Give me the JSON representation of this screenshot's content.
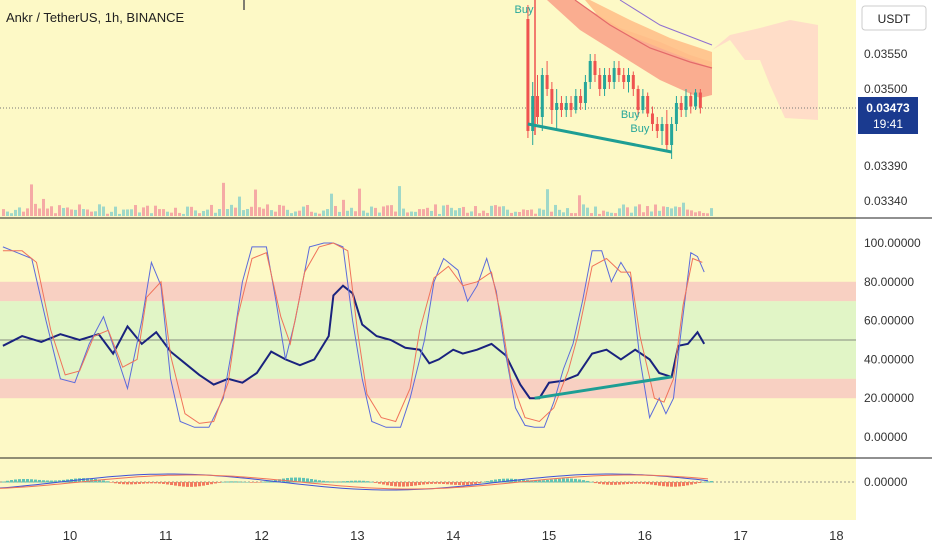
{
  "header": {
    "title": "Ankr / TetherUS, 1h, BINANCE"
  },
  "currency_button": {
    "label": "USDT"
  },
  "price_badge": {
    "price": "0.03473",
    "countdown": "19:41"
  },
  "price_ticks": [
    "0.03550",
    "0.03500",
    "0.03390",
    "0.03340"
  ],
  "osc_ticks": [
    "100.00000",
    "80.00000",
    "60.00000",
    "40.00000",
    "20.00000",
    "0.00000"
  ],
  "macd_ticks": [
    "0.00000"
  ],
  "x_ticks": [
    "10",
    "11",
    "12",
    "13",
    "14",
    "15",
    "16",
    "17",
    "18"
  ],
  "buy_labels": [
    "Buy",
    "Buy",
    "Buy"
  ],
  "colors": {
    "background": "#fdf9c6",
    "bullish": "#26a69a",
    "bearish": "#ef5350",
    "rsi": "#1a237e",
    "stoch_k": "#5b6bdb",
    "stoch_d": "#f0735a",
    "trendline": "#1e9e94",
    "badge": "#1a3a8f",
    "buy_text": "#26a69a"
  },
  "chart_data": [
    {
      "type": "candlestick",
      "title": "Ankr / TetherUS, 1h, BINANCE",
      "y_ticks": [
        0.0355,
        0.035,
        0.0339,
        0.0334
      ],
      "last_price": 0.03473,
      "candles_day15_to_16_6": [
        [
          14.78,
          0.036,
          0.0362,
          0.0343,
          0.0344
        ],
        [
          14.83,
          0.0344,
          0.0351,
          0.0342,
          0.0349
        ],
        [
          14.88,
          0.0349,
          0.0352,
          0.0345,
          0.0346
        ],
        [
          14.93,
          0.0346,
          0.0353,
          0.0344,
          0.0352
        ],
        [
          14.98,
          0.0352,
          0.0354,
          0.0349,
          0.035
        ],
        [
          15.03,
          0.035,
          0.0351,
          0.0345,
          0.0347
        ],
        [
          15.08,
          0.0347,
          0.035,
          0.0344,
          0.0348
        ],
        [
          15.13,
          0.0348,
          0.0349,
          0.0346,
          0.0347
        ],
        [
          15.18,
          0.0347,
          0.0349,
          0.0346,
          0.0348
        ],
        [
          15.23,
          0.0348,
          0.0349,
          0.0346,
          0.0347
        ],
        [
          15.28,
          0.0347,
          0.035,
          0.03465,
          0.0349
        ],
        [
          15.33,
          0.0349,
          0.035,
          0.0347,
          0.0348
        ],
        [
          15.38,
          0.0348,
          0.0352,
          0.0347,
          0.0351
        ],
        [
          15.43,
          0.0351,
          0.0355,
          0.035,
          0.0354
        ],
        [
          15.48,
          0.0354,
          0.0355,
          0.0351,
          0.0352
        ],
        [
          15.53,
          0.0352,
          0.0353,
          0.0349,
          0.035
        ],
        [
          15.58,
          0.035,
          0.0353,
          0.0349,
          0.0352
        ],
        [
          15.63,
          0.0352,
          0.0353,
          0.035,
          0.0351
        ],
        [
          15.68,
          0.0351,
          0.0354,
          0.035,
          0.0353
        ],
        [
          15.73,
          0.0353,
          0.0354,
          0.0351,
          0.0352
        ],
        [
          15.78,
          0.0352,
          0.0353,
          0.035,
          0.0351
        ],
        [
          15.83,
          0.0351,
          0.0353,
          0.03495,
          0.0352
        ],
        [
          15.88,
          0.0352,
          0.03525,
          0.0349,
          0.035
        ],
        [
          15.93,
          0.035,
          0.03505,
          0.0346,
          0.0347
        ],
        [
          15.98,
          0.0347,
          0.035,
          0.03465,
          0.0349
        ],
        [
          16.03,
          0.0349,
          0.03495,
          0.0346,
          0.03465
        ],
        [
          16.08,
          0.03465,
          0.03475,
          0.0344,
          0.0345
        ],
        [
          16.13,
          0.0345,
          0.0346,
          0.0343,
          0.0344
        ],
        [
          16.18,
          0.0344,
          0.0346,
          0.0342,
          0.0345
        ],
        [
          16.23,
          0.0345,
          0.0347,
          0.0341,
          0.0342
        ],
        [
          16.28,
          0.0342,
          0.0346,
          0.034,
          0.0345
        ],
        [
          16.33,
          0.0345,
          0.0349,
          0.0344,
          0.0348
        ],
        [
          16.38,
          0.0348,
          0.0349,
          0.0346,
          0.0347
        ],
        [
          16.43,
          0.0347,
          0.035,
          0.0346,
          0.0349
        ],
        [
          16.48,
          0.0349,
          0.03495,
          0.03465,
          0.03475
        ],
        [
          16.53,
          0.03475,
          0.035,
          0.0347,
          0.03495
        ],
        [
          16.58,
          0.03495,
          0.035,
          0.03465,
          0.03473
        ]
      ],
      "trendline": [
        [
          14.78,
          0.0345
        ],
        [
          16.28,
          0.0341
        ]
      ],
      "buy_signals": [
        [
          14.64,
          0.0362
        ],
        [
          15.75,
          0.0347
        ],
        [
          15.85,
          0.0345
        ]
      ]
    },
    {
      "type": "line",
      "ylim": [
        0,
        100
      ],
      "y_ticks": [
        100,
        80,
        60,
        40,
        20,
        0
      ],
      "bands": [
        [
          70,
          80
        ],
        [
          30,
          70
        ],
        [
          20,
          30
        ]
      ],
      "series": [
        {
          "values": [
            [
              9.3,
              47
            ],
            [
              9.5,
              52
            ],
            [
              9.7,
              49
            ],
            [
              9.9,
              53
            ],
            [
              10.1,
              50
            ],
            [
              10.3,
              53
            ],
            [
              10.45,
              43
            ],
            [
              10.6,
              57
            ],
            [
              10.75,
              48
            ],
            [
              10.9,
              54
            ],
            [
              11.05,
              44
            ],
            [
              11.2,
              38
            ],
            [
              11.35,
              32
            ],
            [
              11.5,
              27
            ],
            [
              11.65,
              30
            ],
            [
              11.8,
              28
            ],
            [
              11.95,
              33
            ],
            [
              12.1,
              44
            ],
            [
              12.25,
              40
            ],
            [
              12.4,
              37
            ],
            [
              12.55,
              40
            ],
            [
              12.7,
              52
            ],
            [
              12.75,
              73
            ],
            [
              12.85,
              78
            ],
            [
              12.95,
              74
            ],
            [
              13.05,
              58
            ],
            [
              13.2,
              52
            ],
            [
              13.35,
              50
            ],
            [
              13.5,
              46
            ],
            [
              13.65,
              45
            ],
            [
              13.75,
              38
            ],
            [
              13.85,
              40
            ],
            [
              14.0,
              45
            ],
            [
              14.1,
              43
            ],
            [
              14.25,
              45
            ],
            [
              14.4,
              48
            ],
            [
              14.55,
              42
            ],
            [
              14.7,
              27
            ],
            [
              14.8,
              20
            ],
            [
              14.9,
              20
            ],
            [
              15.0,
              28
            ],
            [
              15.15,
              29
            ],
            [
              15.3,
              32
            ],
            [
              15.45,
              43
            ],
            [
              15.6,
              45
            ],
            [
              15.75,
              40
            ],
            [
              15.9,
              45
            ],
            [
              16.05,
              40
            ],
            [
              16.15,
              33
            ],
            [
              16.28,
              31
            ],
            [
              16.35,
              47
            ],
            [
              16.45,
              48
            ],
            [
              16.55,
              54
            ],
            [
              16.62,
              48
            ]
          ]
        },
        {
          "values": [
            [
              9.3,
              98
            ],
            [
              9.45,
              95
            ],
            [
              9.6,
              92
            ],
            [
              9.75,
              60
            ],
            [
              9.9,
              30
            ],
            [
              10.05,
              28
            ],
            [
              10.2,
              48
            ],
            [
              10.35,
              62
            ],
            [
              10.5,
              40
            ],
            [
              10.6,
              25
            ],
            [
              10.75,
              60
            ],
            [
              10.85,
              90
            ],
            [
              10.95,
              78
            ],
            [
              11.05,
              30
            ],
            [
              11.15,
              8
            ],
            [
              11.3,
              5
            ],
            [
              11.45,
              5
            ],
            [
              11.6,
              20
            ],
            [
              11.7,
              48
            ],
            [
              11.8,
              80
            ],
            [
              11.9,
              98
            ],
            [
              12.05,
              98
            ],
            [
              12.15,
              70
            ],
            [
              12.25,
              40
            ],
            [
              12.35,
              60
            ],
            [
              12.5,
              98
            ],
            [
              12.65,
              100
            ],
            [
              12.75,
              100
            ],
            [
              12.85,
              98
            ],
            [
              12.95,
              60
            ],
            [
              13.05,
              30
            ],
            [
              13.15,
              8
            ],
            [
              13.3,
              5
            ],
            [
              13.45,
              5
            ],
            [
              13.55,
              20
            ],
            [
              13.7,
              50
            ],
            [
              13.8,
              80
            ],
            [
              13.9,
              92
            ],
            [
              14.05,
              86
            ],
            [
              14.15,
              70
            ],
            [
              14.25,
              78
            ],
            [
              14.35,
              92
            ],
            [
              14.45,
              75
            ],
            [
              14.55,
              42
            ],
            [
              14.65,
              15
            ],
            [
              14.75,
              6
            ],
            [
              14.85,
              5
            ],
            [
              14.95,
              5
            ],
            [
              15.05,
              18
            ],
            [
              15.15,
              35
            ],
            [
              15.25,
              48
            ],
            [
              15.35,
              70
            ],
            [
              15.45,
              96
            ],
            [
              15.55,
              96
            ],
            [
              15.65,
              80
            ],
            [
              15.75,
              90
            ],
            [
              15.85,
              82
            ],
            [
              15.95,
              40
            ],
            [
              16.05,
              10
            ],
            [
              16.15,
              20
            ],
            [
              16.22,
              12
            ],
            [
              16.3,
              20
            ],
            [
              16.38,
              55
            ],
            [
              16.48,
              95
            ],
            [
              16.55,
              93
            ],
            [
              16.62,
              85
            ]
          ],
          "name": ""
        },
        {
          "values": [
            [
              9.3,
              96
            ],
            [
              9.5,
              96
            ],
            [
              9.65,
              90
            ],
            [
              9.8,
              55
            ],
            [
              9.95,
              32
            ],
            [
              10.1,
              34
            ],
            [
              10.25,
              52
            ],
            [
              10.4,
              55
            ],
            [
              10.55,
              36
            ],
            [
              10.7,
              40
            ],
            [
              10.8,
              72
            ],
            [
              10.95,
              80
            ],
            [
              11.05,
              42
            ],
            [
              11.2,
              12
            ],
            [
              11.35,
              7
            ],
            [
              11.5,
              8
            ],
            [
              11.65,
              28
            ],
            [
              11.75,
              62
            ],
            [
              11.9,
              92
            ],
            [
              12.05,
              95
            ],
            [
              12.2,
              62
            ],
            [
              12.3,
              48
            ],
            [
              12.45,
              85
            ],
            [
              12.6,
              98
            ],
            [
              12.75,
              100
            ],
            [
              12.9,
              96
            ],
            [
              13.0,
              55
            ],
            [
              13.1,
              22
            ],
            [
              13.25,
              10
            ],
            [
              13.4,
              8
            ],
            [
              13.55,
              25
            ],
            [
              13.65,
              55
            ],
            [
              13.8,
              82
            ],
            [
              13.95,
              88
            ],
            [
              14.1,
              78
            ],
            [
              14.25,
              80
            ],
            [
              14.4,
              85
            ],
            [
              14.5,
              62
            ],
            [
              14.6,
              30
            ],
            [
              14.75,
              10
            ],
            [
              14.9,
              8
            ],
            [
              15.05,
              15
            ],
            [
              15.2,
              34
            ],
            [
              15.3,
              52
            ],
            [
              15.45,
              88
            ],
            [
              15.6,
              92
            ],
            [
              15.75,
              85
            ],
            [
              15.85,
              85
            ],
            [
              15.95,
              52
            ],
            [
              16.1,
              20
            ],
            [
              16.2,
              18
            ],
            [
              16.3,
              30
            ],
            [
              16.4,
              68
            ],
            [
              16.5,
              92
            ],
            [
              16.6,
              90
            ]
          ],
          "name": ""
        }
      ],
      "trendline": [
        [
          14.85,
          20
        ],
        [
          16.28,
          31
        ]
      ]
    },
    {
      "type": "line",
      "y_ticks": [
        0
      ],
      "series": [
        {
          "values": []
        },
        {
          "values": []
        }
      ]
    }
  ]
}
